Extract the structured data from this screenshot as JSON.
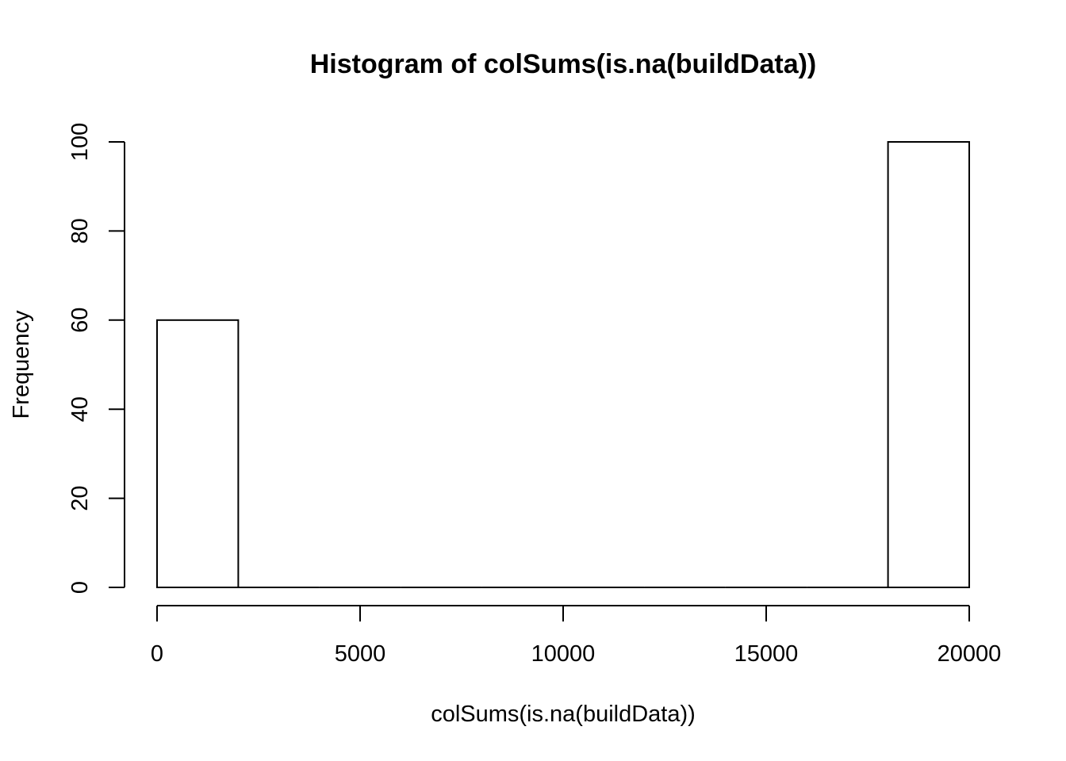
{
  "chart_data": {
    "type": "bar",
    "subtype": "histogram",
    "title": "Histogram of colSums(is.na(buildData))",
    "xlabel": "colSums(is.na(buildData))",
    "ylabel": "Frequency",
    "bins": [
      {
        "start": 0,
        "end": 2000,
        "count": 60
      },
      {
        "start": 2000,
        "end": 4000,
        "count": 0
      },
      {
        "start": 4000,
        "end": 6000,
        "count": 0
      },
      {
        "start": 6000,
        "end": 8000,
        "count": 0
      },
      {
        "start": 8000,
        "end": 10000,
        "count": 0
      },
      {
        "start": 10000,
        "end": 12000,
        "count": 0
      },
      {
        "start": 12000,
        "end": 14000,
        "count": 0
      },
      {
        "start": 14000,
        "end": 16000,
        "count": 0
      },
      {
        "start": 16000,
        "end": 18000,
        "count": 0
      },
      {
        "start": 18000,
        "end": 20000,
        "count": 100
      }
    ],
    "xlim": [
      0,
      20000
    ],
    "ylim": [
      0,
      100
    ],
    "x_ticks": [
      "0",
      "5000",
      "10000",
      "15000",
      "20000"
    ],
    "y_ticks": [
      "0",
      "20",
      "40",
      "60",
      "80",
      "100"
    ],
    "grid": false,
    "legend": "none",
    "bar_fill": "#ffffff",
    "bar_stroke": "#000000"
  }
}
